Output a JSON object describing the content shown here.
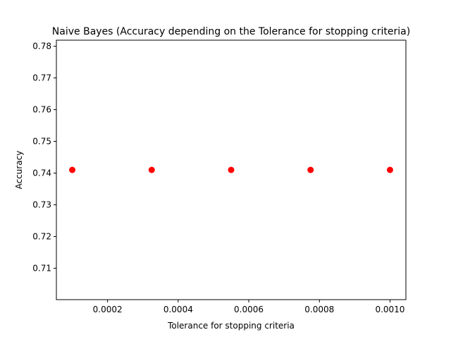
{
  "chart_data": {
    "type": "scatter",
    "title": "Naive Bayes (Accuracy depending on the Tolerance for stopping criteria)",
    "xlabel": "Tolerance for stopping criteria",
    "ylabel": "Accuracy",
    "xlim": [
      5.5e-05,
      0.001045
    ],
    "ylim": [
      0.7001,
      0.7819
    ],
    "x_ticks": [
      0.0002,
      0.0004,
      0.0006,
      0.0008,
      0.001
    ],
    "x_tick_labels": [
      "0.0002",
      "0.0004",
      "0.0006",
      "0.0008",
      "0.0010"
    ],
    "y_ticks": [
      0.71,
      0.72,
      0.73,
      0.74,
      0.75,
      0.76,
      0.77,
      0.78
    ],
    "y_tick_labels": [
      "0.71",
      "0.72",
      "0.73",
      "0.74",
      "0.75",
      "0.76",
      "0.77",
      "0.78"
    ],
    "grid": false,
    "series": [
      {
        "color": "#ff0000",
        "marker": "circle",
        "x": [
          0.0001,
          0.000325,
          0.00055,
          0.000775,
          0.001
        ],
        "y": [
          0.741,
          0.741,
          0.741,
          0.741,
          0.741
        ]
      }
    ]
  }
}
